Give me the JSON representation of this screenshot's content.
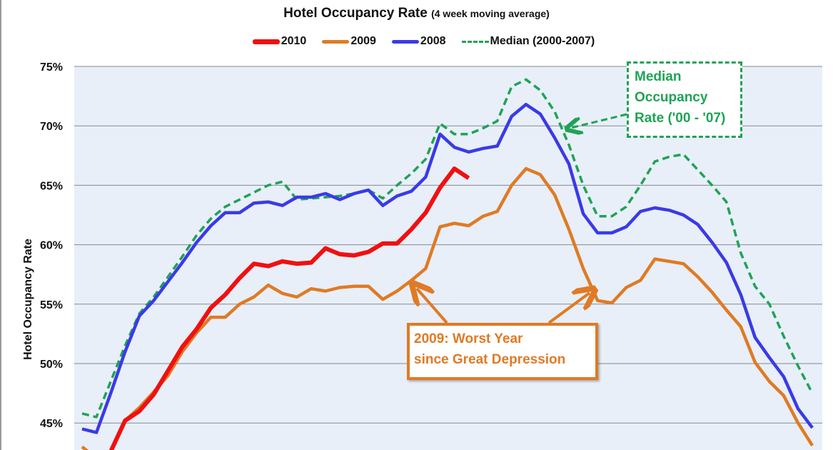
{
  "chart_data": {
    "type": "line",
    "title": "Hotel Occupancy Rate",
    "subtitle": "(4 week moving average)",
    "ylabel": "Hotel Occupancy Rate",
    "yticks": [
      "45%",
      "50%",
      "55%",
      "60%",
      "65%",
      "70%",
      "75%"
    ],
    "ylim": [
      45,
      75
    ],
    "grid": true,
    "legend_placement": "top",
    "series": [
      {
        "name": "2010",
        "color": "#f01010",
        "style": "solid-thick",
        "values": [
          null,
          null,
          42.6,
          45.2,
          46.0,
          47.4,
          49.4,
          51.4,
          52.9,
          54.7,
          55.8,
          57.2,
          58.4,
          58.2,
          58.6,
          58.4,
          58.5,
          59.7,
          59.2,
          59.1,
          59.4,
          60.1,
          60.1,
          61.3,
          62.7,
          64.8,
          66.4,
          65.6
        ]
      },
      {
        "name": "2009",
        "color": "#e07a24",
        "style": "solid",
        "values": [
          43.0,
          42.0,
          42.5,
          45.2,
          46.3,
          47.6,
          49.0,
          51.0,
          52.6,
          53.9,
          53.9,
          55.0,
          55.6,
          56.6,
          55.9,
          55.6,
          56.3,
          56.1,
          56.4,
          56.5,
          56.5,
          55.4,
          56.1,
          57.0,
          58.0,
          61.5,
          61.8,
          61.6,
          62.4,
          62.8,
          65.0,
          66.4,
          65.9,
          64.2,
          61.3,
          58.0,
          55.3,
          55.1,
          56.4,
          57.0,
          58.8,
          58.6,
          58.4,
          57.3,
          56.0,
          54.5,
          53.1,
          50.1,
          48.5,
          47.3,
          45.0,
          43.1
        ]
      },
      {
        "name": "2008",
        "color": "#3a3ae8",
        "style": "solid",
        "values": [
          44.5,
          44.2,
          47.5,
          51.0,
          54.0,
          55.3,
          56.9,
          58.5,
          60.2,
          61.6,
          62.7,
          62.7,
          63.5,
          63.6,
          63.3,
          64.0,
          64.0,
          64.3,
          63.8,
          64.3,
          64.6,
          63.3,
          64.1,
          64.5,
          65.7,
          69.3,
          68.2,
          67.8,
          68.1,
          68.3,
          70.8,
          71.8,
          71.0,
          69.0,
          66.8,
          62.6,
          61.0,
          61.0,
          61.5,
          62.8,
          63.1,
          62.9,
          62.5,
          61.7,
          60.2,
          58.5,
          55.8,
          52.2,
          50.5,
          48.9,
          46.2,
          44.6
        ]
      },
      {
        "name": "Median (2000-2007)",
        "color": "#1fa355",
        "style": "dashed",
        "values": [
          45.8,
          45.5,
          48.5,
          51.5,
          54.2,
          55.6,
          57.3,
          59.0,
          60.8,
          62.2,
          63.2,
          63.8,
          64.4,
          65.0,
          65.3,
          63.8,
          63.9,
          64.0,
          64.1,
          64.3,
          64.6,
          63.9,
          65.0,
          66.0,
          67.2,
          70.2,
          69.3,
          69.3,
          69.8,
          70.4,
          73.3,
          73.9,
          73.0,
          71.2,
          68.4,
          65.0,
          62.4,
          62.4,
          63.2,
          65.0,
          67.0,
          67.4,
          67.6,
          66.3,
          65.0,
          63.6,
          59.3,
          56.5,
          55.0,
          52.3,
          49.8,
          47.5
        ]
      }
    ],
    "annotations": [
      {
        "lines": [
          "2009: Worst Year",
          "since Great Depression"
        ],
        "color": "#e07a24"
      },
      {
        "lines": [
          "Median",
          "Occupancy",
          "Rate ('00 - '07)"
        ],
        "color": "#1fa355"
      }
    ],
    "plot_background": "#e8eff8"
  }
}
